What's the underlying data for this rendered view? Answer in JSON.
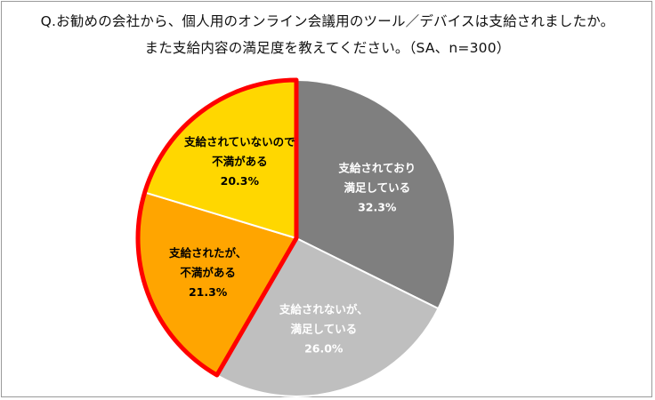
{
  "title_line1": "Q.お勧めの会社から、個人用のオンライン会議用のツール／デバイスは支給されましたか。",
  "title_line2": "また支給内容の満足度を教えてください。（SA、n=300）",
  "chart_data": {
    "type": "pie",
    "title": "Q.お勧めの会社から、個人用のオンライン会議用のツール／デバイスは支給されましたか。また支給内容の満足度を教えてください。（SA、n=300）",
    "unit": "%",
    "start_angle_deg": 0,
    "direction": "clockwise",
    "highlight_color": "#ff0000",
    "slices": [
      {
        "lines": [
          "支給されており",
          "満足している"
        ],
        "value": 32.3,
        "value_label": "32.3%",
        "color": "#7f7f7f",
        "text_color": "#ffffff",
        "highlighted": false
      },
      {
        "lines": [
          "支給されないが、",
          "満足している"
        ],
        "value": 26.0,
        "value_label": "26.0%",
        "color": "#bfbfbf",
        "text_color": "#ffffff",
        "highlighted": false
      },
      {
        "lines": [
          "支給されたが、",
          "不満がある"
        ],
        "value": 21.3,
        "value_label": "21.3%",
        "color": "#ffa500",
        "text_color": "#000000",
        "highlighted": true
      },
      {
        "lines": [
          "支給されていないので",
          "不満がある"
        ],
        "value": 20.3,
        "value_label": "20.3%",
        "color": "#ffd700",
        "text_color": "#000000",
        "highlighted": true
      }
    ]
  }
}
